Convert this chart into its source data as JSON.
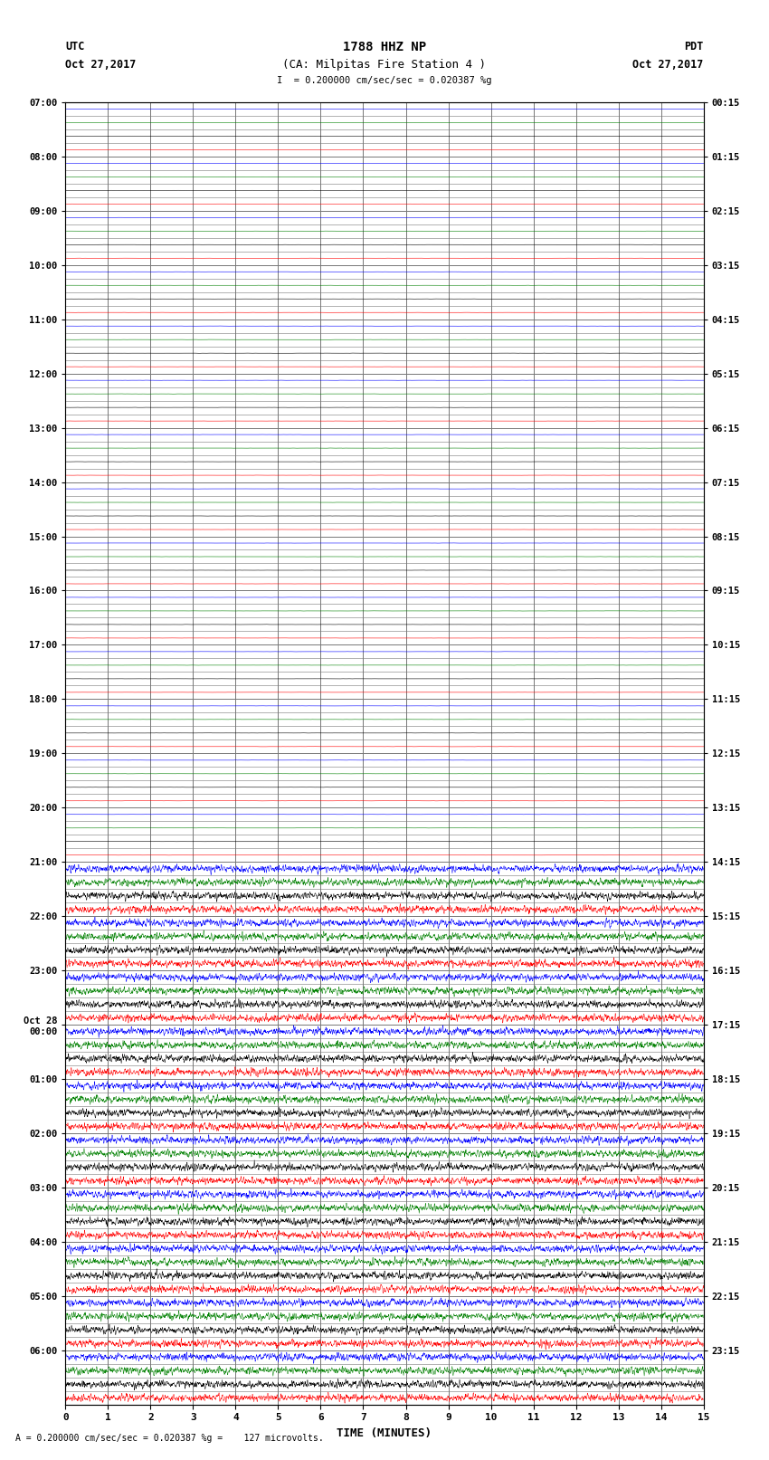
{
  "title_line1": "1788 HHZ NP",
  "title_line2": "(CA: Milpitas Fire Station 4 )",
  "scale_text": "= 0.200000 cm/sec/sec = 0.020387 %g",
  "footer_text": "= 0.200000 cm/sec/sec = 0.020387 %g =    127 microvolts.",
  "left_label_top": "UTC",
  "left_label_bot": "Oct 27,2017",
  "right_label_top": "PDT",
  "right_label_bot": "Oct 27,2017",
  "xlabel": "TIME (MINUTES)",
  "left_times": [
    "07:00",
    "08:00",
    "09:00",
    "10:00",
    "11:00",
    "12:00",
    "13:00",
    "14:00",
    "15:00",
    "16:00",
    "17:00",
    "18:00",
    "19:00",
    "20:00",
    "21:00",
    "22:00",
    "23:00",
    "Oct 28\n00:00",
    "01:00",
    "02:00",
    "03:00",
    "04:00",
    "05:00",
    "06:00"
  ],
  "right_times": [
    "00:15",
    "01:15",
    "02:15",
    "03:15",
    "04:15",
    "05:15",
    "06:15",
    "07:15",
    "08:15",
    "09:15",
    "10:15",
    "11:15",
    "12:15",
    "13:15",
    "14:15",
    "15:15",
    "16:15",
    "17:15",
    "18:15",
    "19:15",
    "20:15",
    "21:15",
    "22:15",
    "23:15"
  ],
  "n_hours": 24,
  "traces_per_hour": 4,
  "quiet_hours": 14,
  "colors_cycle": [
    "blue",
    "green",
    "black",
    "red"
  ],
  "bg_color": "white",
  "grid_color": "#777777",
  "xmin": 0,
  "xmax": 15,
  "x_ticks": [
    0,
    1,
    2,
    3,
    4,
    5,
    6,
    7,
    8,
    9,
    10,
    11,
    12,
    13,
    14,
    15
  ],
  "quiet_amp": 0.008,
  "active_amp": 0.12
}
